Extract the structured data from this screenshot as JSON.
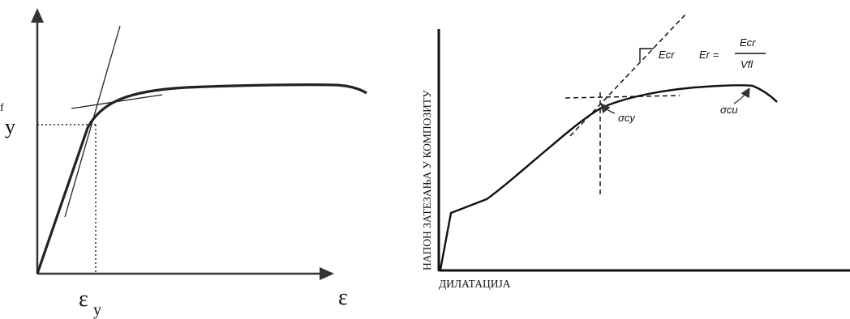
{
  "left_diagram": {
    "y_label": "fy",
    "x_label": "ε",
    "x_tick_label": "εy",
    "y_tick_sub": "y",
    "y_tick_main": "f",
    "x_tick_main": "ε",
    "x_tick_sub": "y"
  },
  "right_diagram": {
    "y_axis_label": "НАПОН ЗАТЕЗАЊА У КОМПОЗИТУ",
    "x_axis_label": "ДИЛАТАЦИЈА",
    "slope_label": "Ecr",
    "formula_lhs": "Er =",
    "formula_num": "Ecr",
    "formula_den": "Vfl",
    "sigma_cy": "σcy",
    "sigma_cu": "σcu"
  }
}
